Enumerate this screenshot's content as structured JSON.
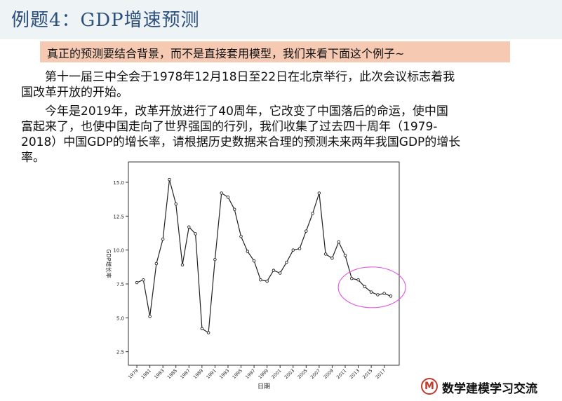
{
  "title": "例题4：GDP增速预测",
  "highlight": "真正的预测要结合背景，而不是直接套用模型，我们来看下面这个例子~",
  "paragraphs": [
    [
      "第十一届三中全会于1978年12月18日至22日在北京举行，此次会议标志着我",
      "国改革开放的开始。"
    ],
    [
      "今年是2019年，改革开放进行了40周年，它改变了中国落后的命运，使中国",
      "富起来了，也使中国走向了世界强国的行列，我们收集了过去四十周年（1979-",
      "2018）中国GDP的增长率，请根据历史数据来合理的预测未来两年我国GDP的增长",
      "率。"
    ]
  ],
  "footer": {
    "logo_letter": "M",
    "text": "数学建模学习交流"
  },
  "chart_data": {
    "type": "line",
    "xlabel": "日期",
    "ylabel": "GDP增长率",
    "x": [
      1979,
      1980,
      1981,
      1982,
      1983,
      1984,
      1985,
      1986,
      1987,
      1988,
      1989,
      1990,
      1991,
      1992,
      1993,
      1994,
      1995,
      1996,
      1997,
      1998,
      1999,
      2000,
      2001,
      2002,
      2003,
      2004,
      2005,
      2006,
      2007,
      2008,
      2009,
      2010,
      2011,
      2012,
      2013,
      2014,
      2015,
      2016,
      2017,
      2018
    ],
    "values": [
      7.6,
      7.8,
      5.1,
      9.0,
      10.8,
      15.2,
      13.4,
      8.9,
      11.7,
      11.2,
      4.2,
      3.9,
      9.3,
      14.2,
      13.9,
      13.0,
      11.0,
      9.9,
      9.2,
      7.8,
      7.7,
      8.5,
      8.3,
      9.1,
      10.0,
      10.1,
      11.4,
      12.7,
      14.2,
      9.7,
      9.4,
      10.6,
      9.6,
      7.9,
      7.8,
      7.3,
      6.9,
      6.7,
      6.8,
      6.6
    ],
    "xticks": [
      "1979",
      "1981",
      "1983",
      "1985",
      "1987",
      "1989",
      "1991",
      "1993",
      "1995",
      "1997",
      "1999",
      "2001",
      "2003",
      "2005",
      "2007",
      "2009",
      "2011",
      "2013",
      "2015",
      "2017"
    ],
    "yticks": [
      "2.5",
      "5.0",
      "7.5",
      "10.0",
      "12.5",
      "15.0"
    ],
    "ylim": [
      1.5,
      16.5
    ],
    "grid": false,
    "annotation": {
      "shape": "ellipse",
      "color": "#e060e0",
      "x_range": [
        2012,
        2018
      ]
    }
  }
}
